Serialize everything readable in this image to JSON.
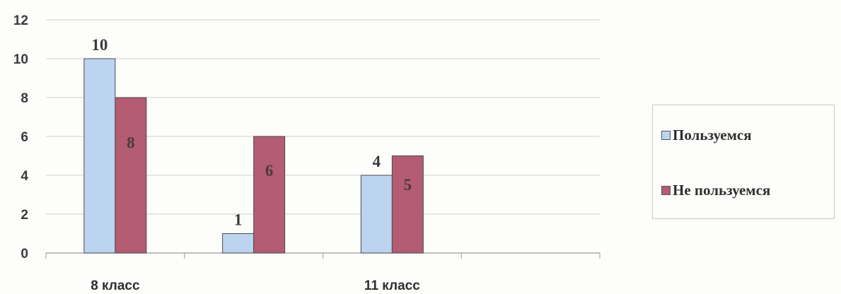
{
  "chart_data": {
    "type": "bar",
    "title": "",
    "xlabel": "",
    "ylabel": "",
    "ylim": [
      0,
      12
    ],
    "yticks": [
      0,
      2,
      4,
      6,
      8,
      10,
      12
    ],
    "categories": [
      "8 класс",
      "",
      "11 класс",
      ""
    ],
    "series": [
      {
        "name": "Пользуемся",
        "values": [
          10,
          1,
          4,
          null
        ],
        "color": "#bcd4f0"
      },
      {
        "name": "Не пользуемся",
        "values": [
          8,
          6,
          5,
          null
        ],
        "color": "#b35c74"
      }
    ],
    "data_labels": [
      [
        "10",
        "1",
        "4",
        null
      ],
      [
        "8",
        "6",
        "5",
        null
      ]
    ],
    "grid": true,
    "legend_position": "right"
  }
}
